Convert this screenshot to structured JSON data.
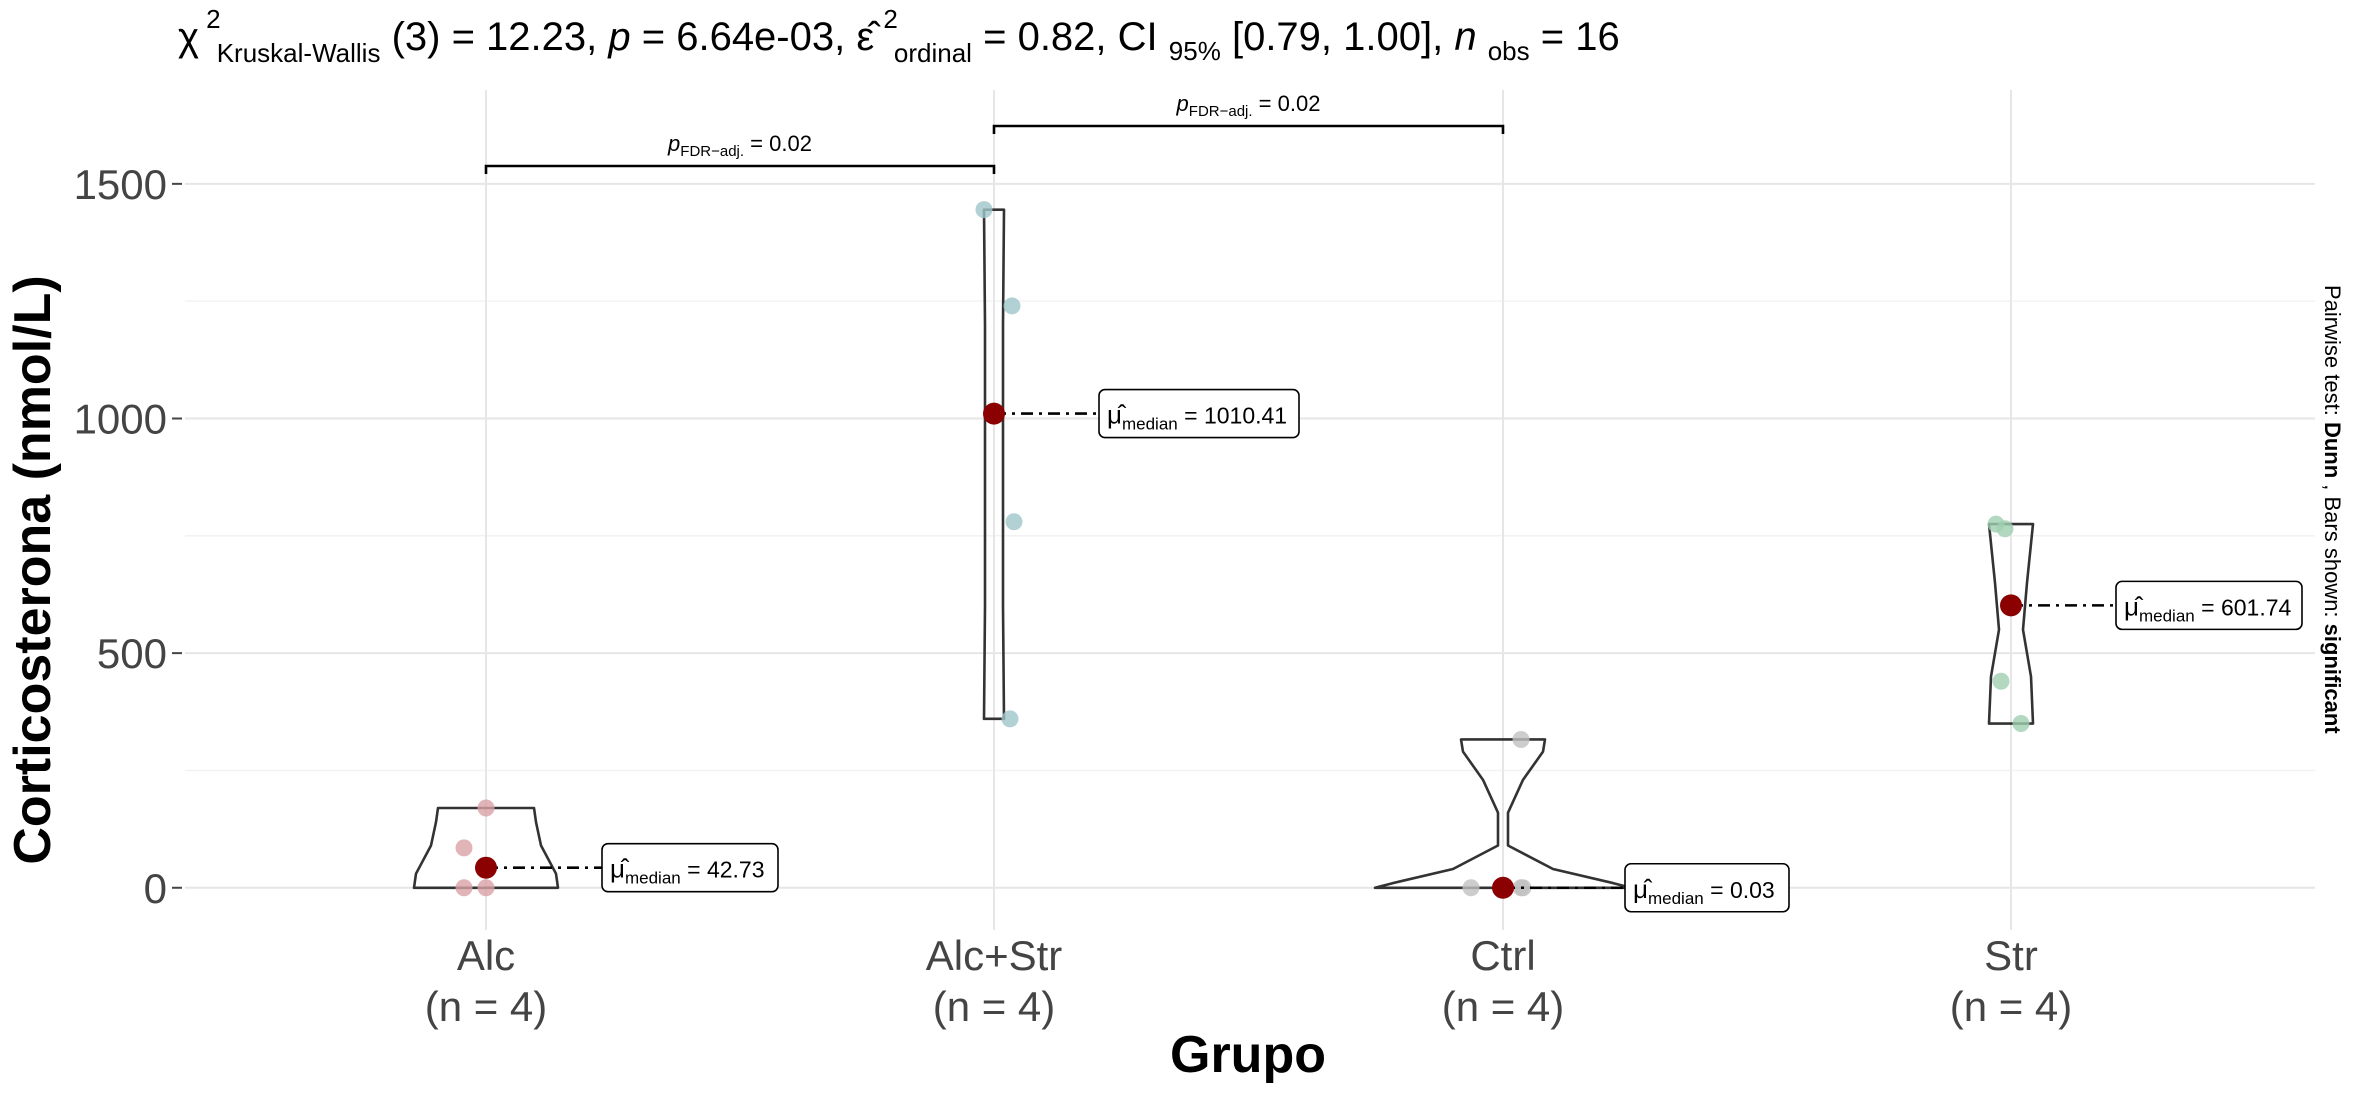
{
  "chart_data": {
    "type": "violin",
    "subtitle": {
      "chi": "χ",
      "chi_sup": "2",
      "chi_sub": "Kruskal-Wallis",
      "df": "(3) = 12.23, ",
      "p_sym": "p",
      "p_val": " = 6.64e-03, ",
      "eps": "ε̂",
      "eps_sup": "2",
      "eps_sub": "ordinal",
      "eps_val": " = 0.82, CI",
      "ci_sub": "95%",
      "ci_val": " [0.79, 1.00], ",
      "n_sym": "n",
      "n_sub": "obs",
      "n_val": " = 16"
    },
    "xlabel": "Grupo",
    "ylabel": "Corticosterona (nmol/L)",
    "caption": {
      "prefix": "Pairwise test: ",
      "test": "Dunn",
      "mid": ", Bars shown: ",
      "shown": "significant"
    },
    "ylim": [
      -90,
      1700
    ],
    "yticks": [
      0,
      500,
      1000,
      1500
    ],
    "grid": true,
    "categories": [
      "Alc",
      "Alc+Str",
      "Ctrl",
      "Str"
    ],
    "n_labels": [
      "(n = 4)",
      "(n = 4)",
      "(n = 4)",
      "(n = 4)"
    ],
    "point_colors": [
      "#d9a1a6",
      "#9fc6c9",
      "#c0c0c0",
      "#9fcfb0"
    ],
    "median_color": "#8b0000",
    "groups": [
      {
        "points": [
          0,
          0,
          85,
          170
        ],
        "median": 42.73,
        "median_label": "= 42.73",
        "violin_range": [
          0,
          170
        ]
      },
      {
        "points": [
          360,
          780,
          1240,
          1445
        ],
        "median": 1010.41,
        "median_label": "= 1010.41",
        "violin_range": [
          360,
          1445
        ]
      },
      {
        "points": [
          0,
          0,
          0,
          316
        ],
        "median": 0.03,
        "median_label": "= 0.03",
        "violin_range": [
          0,
          316
        ]
      },
      {
        "points": [
          440,
          350,
          765,
          775
        ],
        "median": 601.74,
        "median_label": "= 601.74",
        "violin_range": [
          350,
          775
        ]
      }
    ],
    "median_symbol": "μ̂",
    "median_sub": "median",
    "comparisons": [
      {
        "from": 0,
        "to": 1,
        "p_sym": "p",
        "p_sub": "FDR−adj.",
        "p_val": " = 0.02"
      },
      {
        "from": 1,
        "to": 2,
        "p_sym": "p",
        "p_sub": "FDR−adj.",
        "p_val": " = 0.02"
      }
    ]
  }
}
